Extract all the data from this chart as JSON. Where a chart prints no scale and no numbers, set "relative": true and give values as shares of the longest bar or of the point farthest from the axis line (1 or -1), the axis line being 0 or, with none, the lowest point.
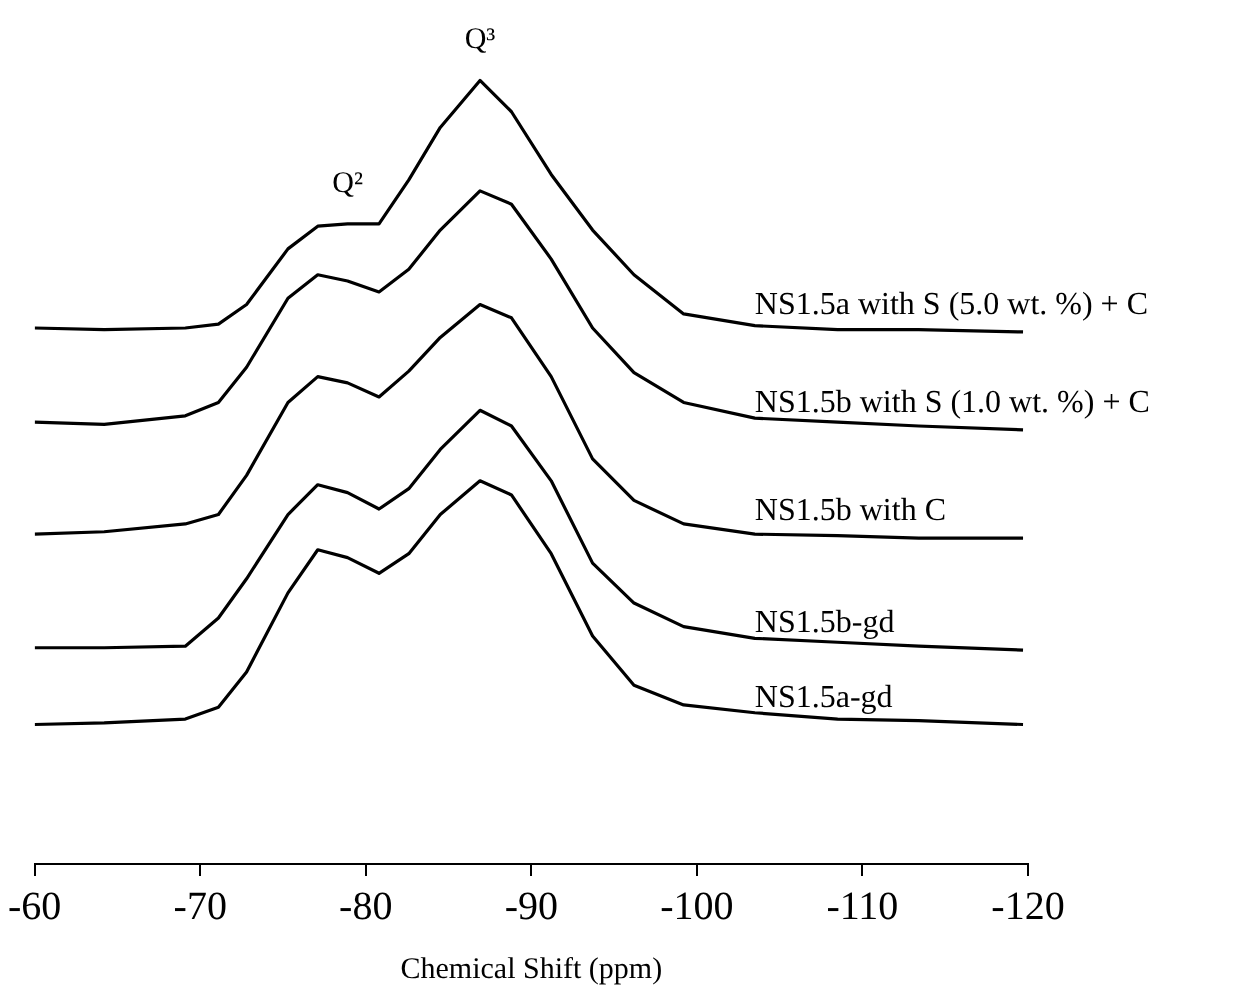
{
  "chart_data": {
    "type": "line",
    "relative": true,
    "xlabel": "Chemical Shift (ppm)",
    "xlim": [
      -60,
      -120
    ],
    "xticks": [
      -60,
      -70,
      -80,
      -90,
      -100,
      -110,
      -120
    ],
    "grid": false,
    "legend": false,
    "marker": "none",
    "line_style": "solid",
    "tick_labels": "x",
    "x": [
      -60,
      -64.2,
      -69.1,
      -71.1,
      -72.8,
      -75.3,
      -77.1,
      -78.9,
      -80.8,
      -82.6,
      -84.5,
      -86.9,
      -88.8,
      -91.2,
      -93.7,
      -96.2,
      -99.2,
      -103.5,
      -108.5,
      -113.4,
      -119.7
    ],
    "series": [
      {
        "name": "NS1.5a with S (5.0 wt. %) + C",
        "color": "#000000",
        "values": [
          0.684,
          0.682,
          0.684,
          0.689,
          0.714,
          0.785,
          0.814,
          0.817,
          0.817,
          0.873,
          0.94,
          1,
          0.96,
          0.88,
          0.809,
          0.752,
          0.702,
          0.687,
          0.682,
          0.682,
          0.679
        ]
      },
      {
        "name": "NS1.5b with S (1.0 wt. %) + C",
        "color": "#000000",
        "values": [
          0.564,
          0.561,
          0.572,
          0.589,
          0.634,
          0.722,
          0.752,
          0.744,
          0.73,
          0.759,
          0.809,
          0.859,
          0.842,
          0.772,
          0.684,
          0.627,
          0.589,
          0.569,
          0.564,
          0.559,
          0.554
        ]
      },
      {
        "name": "NS1.5b with C",
        "color": "#000000",
        "values": [
          0.421,
          0.424,
          0.434,
          0.446,
          0.496,
          0.589,
          0.622,
          0.614,
          0.596,
          0.629,
          0.672,
          0.714,
          0.697,
          0.622,
          0.517,
          0.464,
          0.434,
          0.421,
          0.419,
          0.416,
          0.416
        ]
      },
      {
        "name": "NS1.5b-gd",
        "color": "#000000",
        "values": [
          0.276,
          0.276,
          0.278,
          0.314,
          0.364,
          0.446,
          0.484,
          0.474,
          0.453,
          0.479,
          0.529,
          0.579,
          0.559,
          0.489,
          0.384,
          0.333,
          0.303,
          0.288,
          0.283,
          0.278,
          0.273
        ]
      },
      {
        "name": "NS1.5a-gd",
        "color": "#000000",
        "values": [
          0.178,
          0.18,
          0.185,
          0.2,
          0.245,
          0.346,
          0.401,
          0.391,
          0.371,
          0.396,
          0.446,
          0.489,
          0.471,
          0.396,
          0.291,
          0.228,
          0.203,
          0.193,
          0.185,
          0.183,
          0.178
        ]
      }
    ],
    "annotations": [
      {
        "text": "Q²",
        "x": -78.9,
        "y": 0.817
      },
      {
        "text": "Q³",
        "x": -86.9,
        "y": 1
      }
    ]
  }
}
